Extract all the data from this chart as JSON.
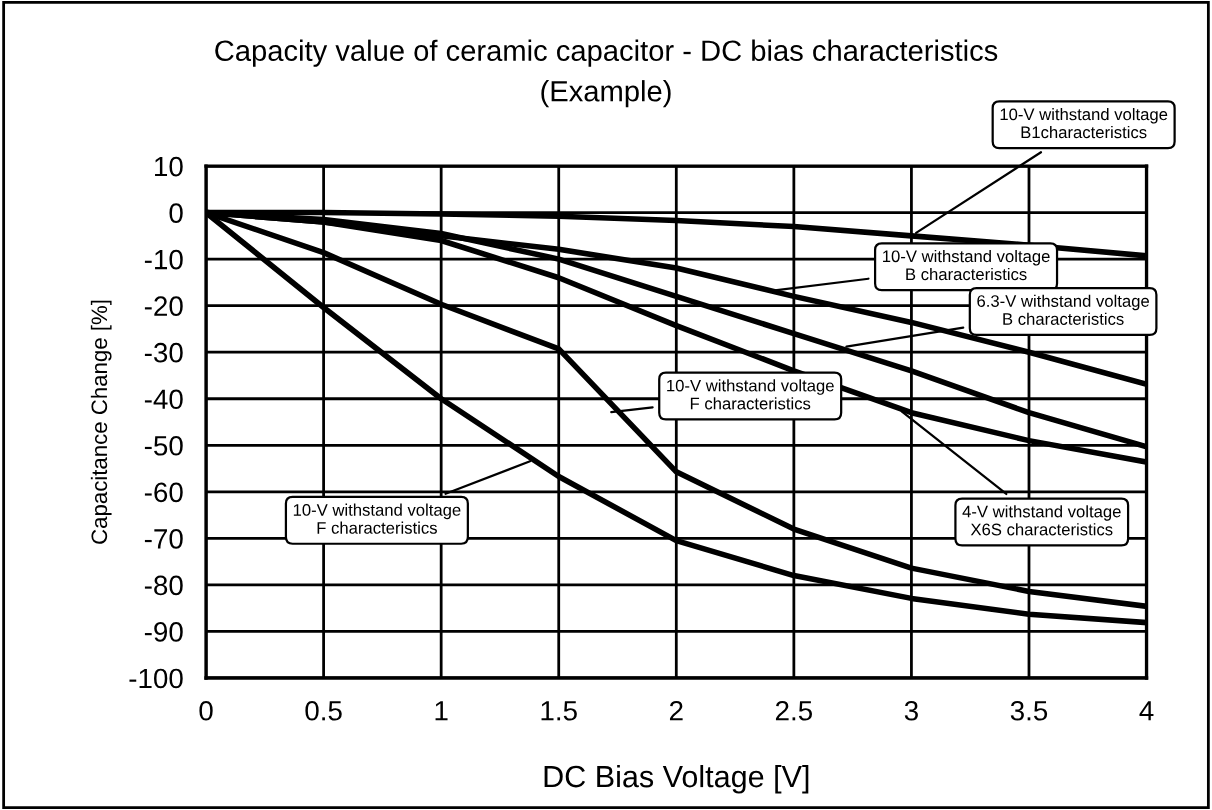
{
  "chart_data": {
    "type": "line",
    "title": "Capacity value of ceramic capacitor - DC bias characteristics",
    "subtitle": "(Example)",
    "xlabel": "DC Bias Voltage [V]",
    "ylabel": "Capacitance Change [%]",
    "x": [
      0,
      0.5,
      1,
      1.5,
      2,
      2.5,
      3,
      3.5,
      4
    ],
    "series": [
      {
        "color": "#000000",
        "values": [
          0,
          0,
          -0.3,
          -0.8,
          -1.7,
          -3,
          -5,
          -7,
          -9.3
        ]
      },
      {
        "color": "#000000",
        "values": [
          0,
          -2,
          -5,
          -7.9,
          -11.9,
          -18,
          -23.6,
          -30,
          -36.9
        ]
      },
      {
        "color": "#000000",
        "values": [
          0,
          -1.5,
          -4.5,
          -10,
          -18,
          -26,
          -34,
          -43,
          -50.3
        ]
      },
      {
        "color": "#000000",
        "values": [
          0,
          -2,
          -6,
          -14,
          -24.3,
          -34,
          -43,
          -49,
          -53.6
        ]
      },
      {
        "color": "#000000",
        "values": [
          0,
          -8.6,
          -19.7,
          -29.3,
          -55.7,
          -68,
          -76.4,
          -81.4,
          -84.6
        ]
      },
      {
        "color": "#000000",
        "values": [
          0,
          -20.4,
          -40,
          -56.7,
          -70.5,
          -78,
          -82.9,
          -86.3,
          -88.1
        ]
      }
    ],
    "annotations": [
      {
        "text": "10-V withstand voltage\nB1characteristics",
        "x": 3.0,
        "y": -5
      },
      {
        "text": "10-V withstand voltage\nB characteristics",
        "x": 2.37,
        "y": -17
      },
      {
        "text": "6.3-V withstand voltage\nB characteristics",
        "x": 2.7,
        "y": -29
      },
      {
        "text": "4-V withstand voltage\nX6S characteristics",
        "x": 2.94,
        "y": -42
      },
      {
        "text": "10-V withstand voltage\nF characteristics",
        "x": 1.7,
        "y": -43
      },
      {
        "text": "10-V withstand voltage\nF characteristics",
        "x": 1.4,
        "y": -53
      }
    ],
    "xlim": [
      0,
      4
    ],
    "xticks": [
      0,
      0.5,
      1,
      1.5,
      2,
      2.5,
      3,
      3.5,
      4
    ],
    "ylim": [
      -100,
      10
    ],
    "yticks": [
      -100,
      -90,
      -80,
      -70,
      -60,
      -50,
      -40,
      -30,
      -20,
      -10,
      0,
      10
    ],
    "grid": true,
    "legend": false,
    "marker": "none",
    "line_style": "solid"
  }
}
